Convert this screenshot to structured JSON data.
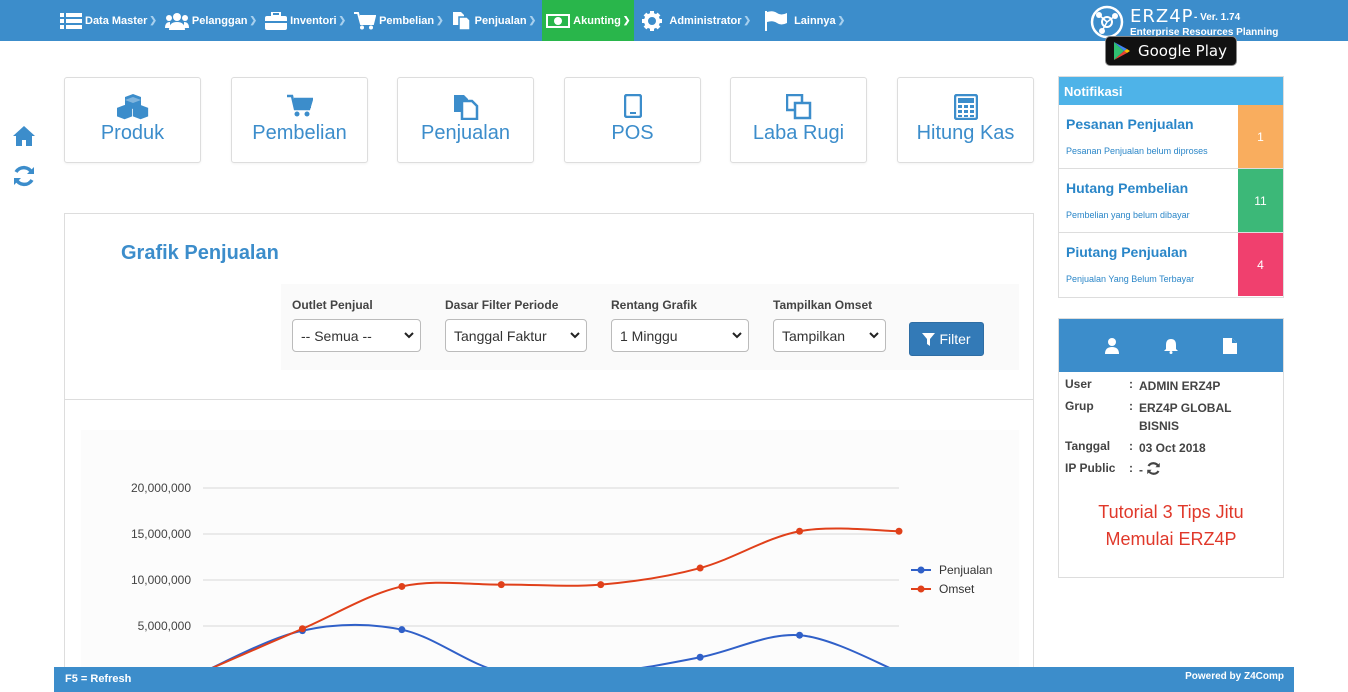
{
  "nav": {
    "items": [
      {
        "label": "Data Master",
        "icon": "list-icon"
      },
      {
        "label": "Pelanggan",
        "icon": "users-icon"
      },
      {
        "label": "Inventori",
        "icon": "briefcase-icon"
      },
      {
        "label": "Pembelian",
        "icon": "cart-icon"
      },
      {
        "label": "Penjualan",
        "icon": "copy-icon"
      },
      {
        "label": "Akunting",
        "icon": "money-icon"
      },
      {
        "label": "Administrator",
        "icon": "gear-icon"
      },
      {
        "label": "Lainnya",
        "icon": "flag-icon"
      }
    ],
    "active": "Akunting"
  },
  "brand": {
    "name": "ERZ4P",
    "version": "- Ver. 1.74",
    "subtitle": "Enterprise Resources Planning",
    "store_label": "Google Play"
  },
  "shortcuts": [
    {
      "label": "Produk",
      "icon": "cubes-icon"
    },
    {
      "label": "Pembelian",
      "icon": "cart-icon"
    },
    {
      "label": "Penjualan",
      "icon": "copy-icon"
    },
    {
      "label": "POS",
      "icon": "tablet-icon"
    },
    {
      "label": "Laba Rugi",
      "icon": "clone-icon"
    },
    {
      "label": "Hitung Kas",
      "icon": "calculator-icon"
    }
  ],
  "sales_panel": {
    "title": "Grafik Penjualan",
    "filters": [
      {
        "label": "Outlet Penjual",
        "value": "-- Semua --"
      },
      {
        "label": "Dasar Filter Periode",
        "value": "Tanggal Faktur"
      },
      {
        "label": "Rentang Grafik",
        "value": "1 Minggu"
      },
      {
        "label": "Tampilkan Omset",
        "value": "Tampilkan"
      }
    ],
    "filter_button": "Filter"
  },
  "chart_data": {
    "type": "line",
    "x": [
      0,
      1,
      2,
      3,
      4,
      5,
      6,
      7
    ],
    "ytick_labels": [
      "5,000,000",
      "10,000,000",
      "15,000,000",
      "20,000,000"
    ],
    "ylim": [
      0,
      20000000
    ],
    "series": [
      {
        "name": "Penjualan",
        "color": "#3060c8",
        "values": [
          0,
          4500000,
          4600000,
          0,
          -100000,
          1600000,
          4000000,
          0
        ]
      },
      {
        "name": "Omset",
        "color": "#e0401a",
        "values": [
          0,
          4700000,
          9300000,
          9500000,
          9500000,
          11300000,
          15300000,
          15300000
        ]
      }
    ],
    "legend": "right",
    "grid": true
  },
  "notifications": {
    "title": "Notifikasi",
    "items": [
      {
        "title": "Pesanan Penjualan",
        "subtitle": "Pesanan Penjualan belum diproses",
        "count": "1",
        "color": "#f9ad5e"
      },
      {
        "title": "Hutang Pembelian",
        "subtitle": "Pembelian yang belum dibayar",
        "count": "11",
        "color": "#3cb878"
      },
      {
        "title": "Piutang Penjualan",
        "subtitle": "Penjualan Yang Belum Terbayar",
        "count": "4",
        "color": "#f0406e"
      }
    ]
  },
  "user_info": {
    "user_label": "User",
    "user_value": "ADMIN ERZ4P",
    "group_label": "Grup",
    "group_value": "ERZ4P GLOBAL BISNIS",
    "date_label": "Tanggal",
    "date_value": "03 Oct 2018",
    "ip_label": "IP Public",
    "ip_value": "-",
    "colon": ":",
    "tutorial_line1": "Tutorial 3 Tips Jitu",
    "tutorial_line2": "Memulai ERZ4P"
  },
  "footer": {
    "left": "F5 = Refresh",
    "right": "Powered by Z4Comp"
  },
  "colors": {
    "topbar": "#3c8dcb",
    "active_menu": "#29b64b",
    "accent": "#3c8dcb"
  }
}
